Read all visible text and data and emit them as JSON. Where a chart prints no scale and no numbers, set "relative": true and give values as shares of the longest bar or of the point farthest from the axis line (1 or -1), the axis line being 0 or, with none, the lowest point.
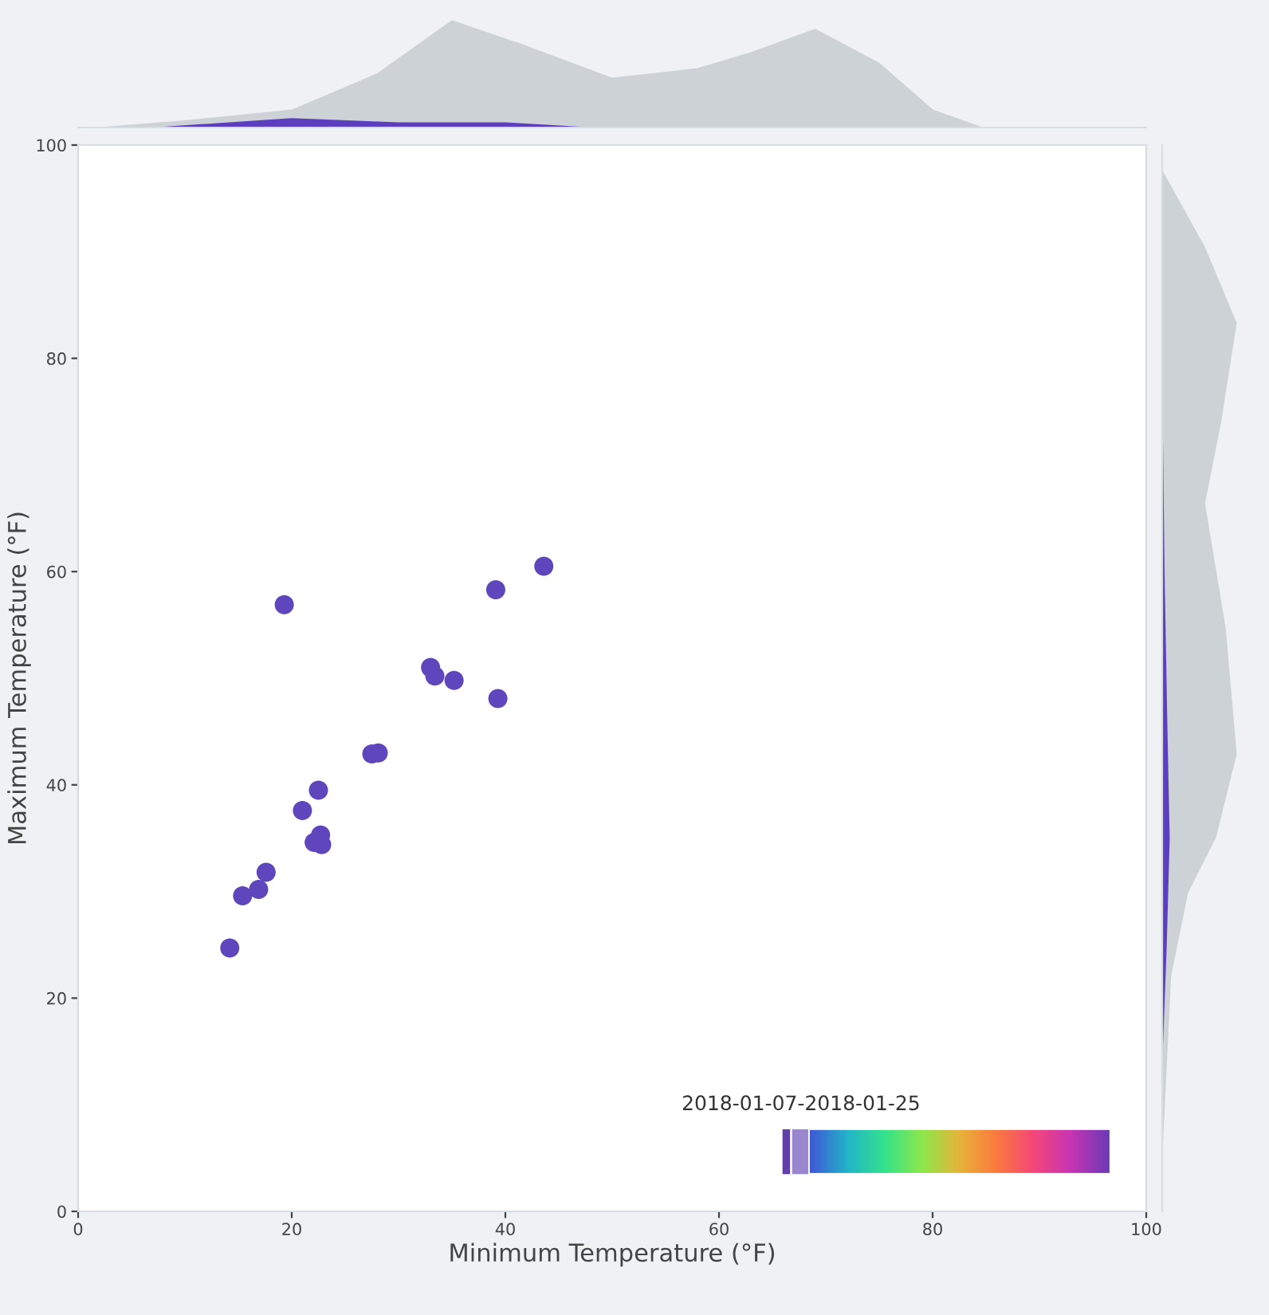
{
  "chart_data": [
    {
      "type": "scatter",
      "xlabel": "Minimum Temperature (°F)",
      "ylabel": "Maximum Temperature (°F)",
      "xlim": [
        0,
        100
      ],
      "ylim": [
        0,
        100
      ],
      "xticks": [
        0,
        20,
        40,
        60,
        80,
        100
      ],
      "yticks": [
        0,
        20,
        40,
        60,
        80,
        100
      ],
      "grid": false,
      "marker": "circle",
      "series": [
        {
          "color": "#5f46bd",
          "x": [
            14.2,
            15.4,
            16.9,
            17.6,
            19.3,
            21.0,
            22.1,
            22.8,
            22.7,
            22.5,
            27.5,
            28.1,
            33.0,
            33.4,
            35.2,
            39.1,
            39.3,
            43.6
          ],
          "values": [
            24.7,
            29.6,
            30.2,
            31.8,
            56.9,
            37.6,
            34.6,
            34.4,
            35.3,
            39.5,
            42.9,
            43.0,
            51.0,
            50.2,
            49.8,
            58.3,
            48.1,
            60.5
          ]
        }
      ],
      "annotations": [
        "2018-01-07-2018-01-25"
      ]
    },
    {
      "type": "area",
      "relative": true,
      "xlim": [
        0,
        100
      ],
      "tick_labels": false,
      "series": [
        {
          "color": "#cdd2d6",
          "x": [
            2.5,
            10,
            20,
            28,
            35,
            42,
            50,
            58,
            63,
            69,
            75,
            80,
            84.5
          ],
          "values": [
            0,
            0.06,
            0.16,
            0.5,
            1.0,
            0.76,
            0.46,
            0.55,
            0.7,
            0.92,
            0.6,
            0.16,
            0
          ]
        },
        {
          "color": "#5c3fbf",
          "x": [
            8,
            20,
            30,
            40,
            47
          ],
          "values": [
            0,
            0.08,
            0.04,
            0.04,
            0
          ]
        }
      ]
    },
    {
      "type": "area",
      "relative": true,
      "orientation": "horizontal",
      "ylim": [
        0,
        100
      ],
      "tick_labels": false,
      "series": [
        {
          "color": "#cdd2d6",
          "x": [
            6.6,
            22.1,
            29.9,
            35.1,
            42.9,
            54.7,
            66.4,
            74.1,
            83.3,
            90.4,
            97.5
          ],
          "values": [
            0,
            0.11,
            0.34,
            0.72,
            1.0,
            0.85,
            0.57,
            0.79,
            1.0,
            0.57,
            0
          ]
        },
        {
          "color": "#5c3fbf",
          "x": [
            15.7,
            25,
            35,
            45,
            60,
            72
          ],
          "values": [
            0,
            0.05,
            0.09,
            0.06,
            0.02,
            0
          ]
        }
      ]
    }
  ]
}
